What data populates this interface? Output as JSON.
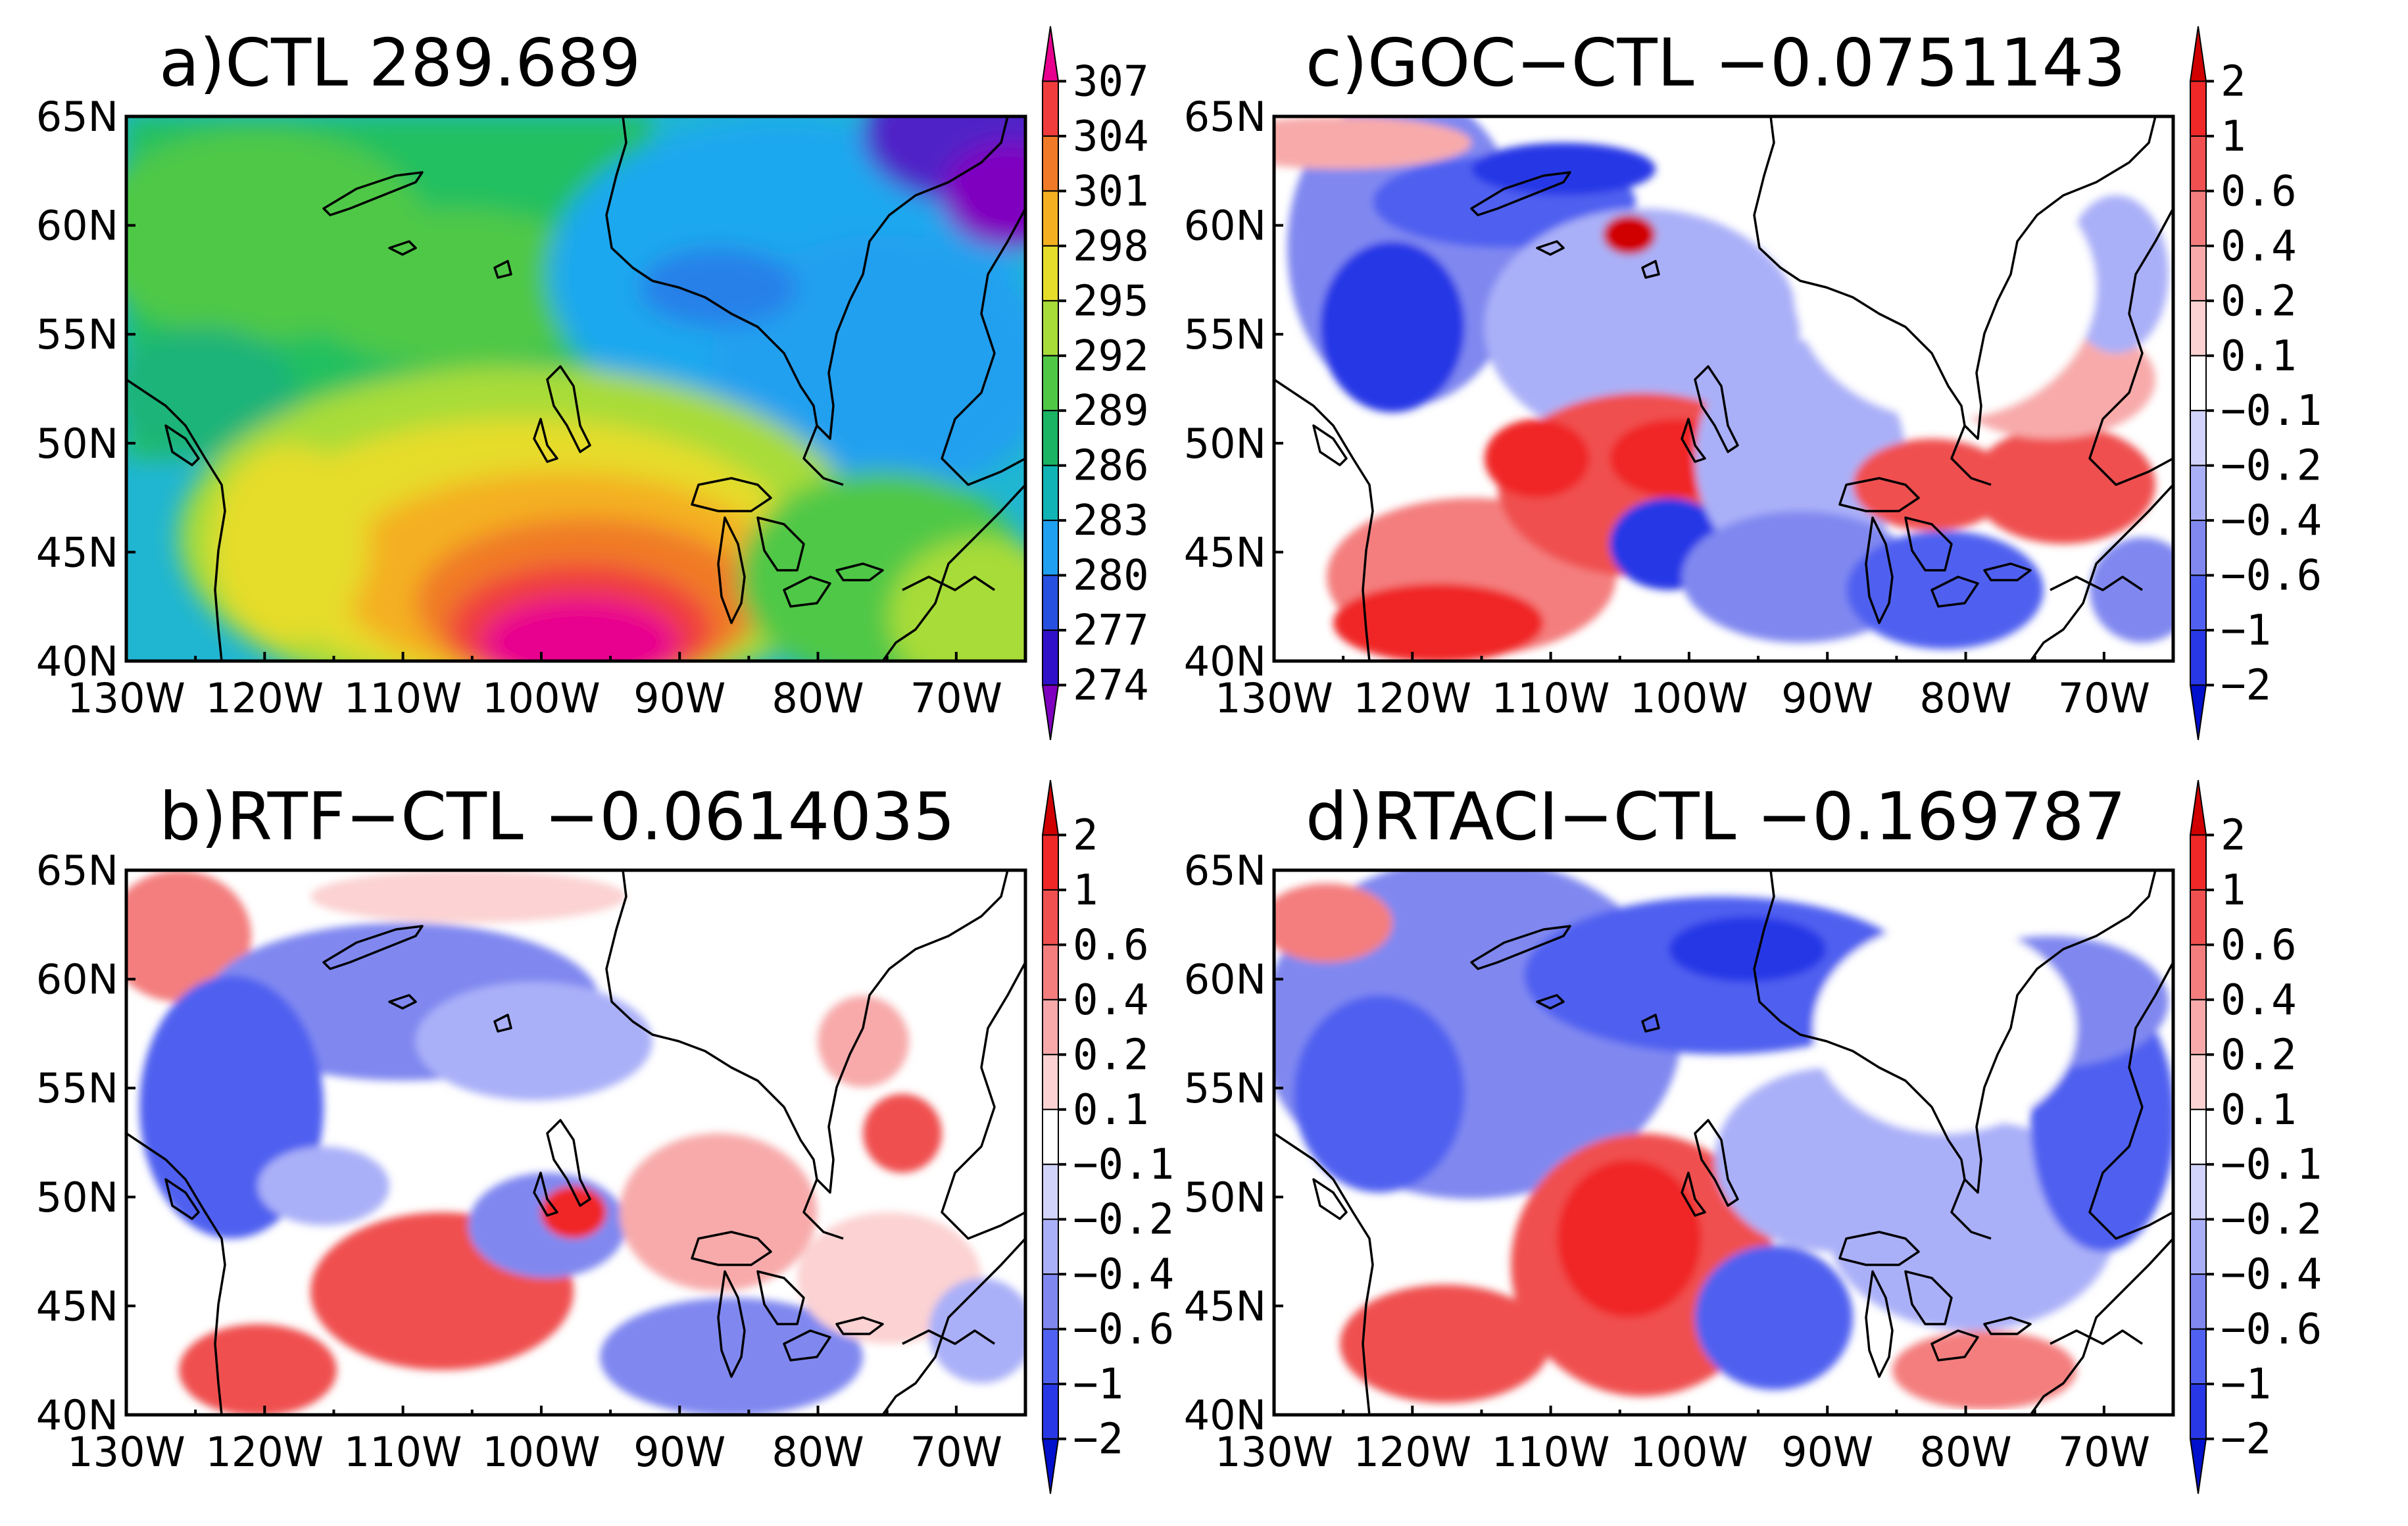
{
  "figure": {
    "panels": [
      {
        "id": "a",
        "title": "a)CTL  289.689",
        "kind": "absolute",
        "colorbar": {
          "labels": [
            "307",
            "304",
            "301",
            "298",
            "295",
            "292",
            "289",
            "286",
            "283",
            "280",
            "277",
            "274"
          ],
          "colors": [
            "#e8008f",
            "#f03c3c",
            "#f07a28",
            "#f4b020",
            "#e6dc2a",
            "#a8dc38",
            "#50c846",
            "#1ab464",
            "#10b4b4",
            "#20a0f0",
            "#2850e0",
            "#3010c8",
            "#8000c0"
          ]
        }
      },
      {
        "id": "b",
        "title": "b)RTF−CTL  −0.0614035",
        "kind": "difference",
        "colorbar": {
          "labels": [
            "2",
            "1",
            "0.6",
            "0.4",
            "0.2",
            "0.1",
            "−0.1",
            "−0.2",
            "−0.4",
            "−0.6",
            "−1",
            "−2"
          ],
          "colors": [
            "#d00000",
            "#f02828",
            "#f05050",
            "#f47e7e",
            "#f8aaaa",
            "#fcd2d2",
            "#ffffff",
            "#d2d4fc",
            "#aab0f8",
            "#8088f0",
            "#5060f0",
            "#2838e6",
            "#0010cc"
          ]
        }
      },
      {
        "id": "c",
        "title": "c)GOC−CTL  −0.0751143",
        "kind": "difference",
        "colorbar": {
          "labels": [
            "2",
            "1",
            "0.6",
            "0.4",
            "0.2",
            "0.1",
            "−0.1",
            "−0.2",
            "−0.4",
            "−0.6",
            "−1",
            "−2"
          ],
          "colors": [
            "#d00000",
            "#f02828",
            "#f05050",
            "#f47e7e",
            "#f8aaaa",
            "#fcd2d2",
            "#ffffff",
            "#d2d4fc",
            "#aab0f8",
            "#8088f0",
            "#5060f0",
            "#2838e6",
            "#0010cc"
          ]
        }
      },
      {
        "id": "d",
        "title": "d)RTACI−CTL  −0.169787",
        "kind": "difference",
        "colorbar": {
          "labels": [
            "2",
            "1",
            "0.6",
            "0.4",
            "0.2",
            "0.1",
            "−0.1",
            "−0.2",
            "−0.4",
            "−0.6",
            "−1",
            "−2"
          ],
          "colors": [
            "#d00000",
            "#f02828",
            "#f05050",
            "#f47e7e",
            "#f8aaaa",
            "#fcd2d2",
            "#ffffff",
            "#d2d4fc",
            "#aab0f8",
            "#8088f0",
            "#5060f0",
            "#2838e6",
            "#0010cc"
          ]
        }
      }
    ],
    "lat_labels": [
      "65N",
      "60N",
      "55N",
      "50N",
      "45N",
      "40N"
    ],
    "lon_labels": [
      "130W",
      "120W",
      "110W",
      "100W",
      "90W",
      "80W",
      "70W"
    ],
    "lon_range": [
      -130,
      -65
    ],
    "lat_range": [
      40,
      65
    ]
  }
}
